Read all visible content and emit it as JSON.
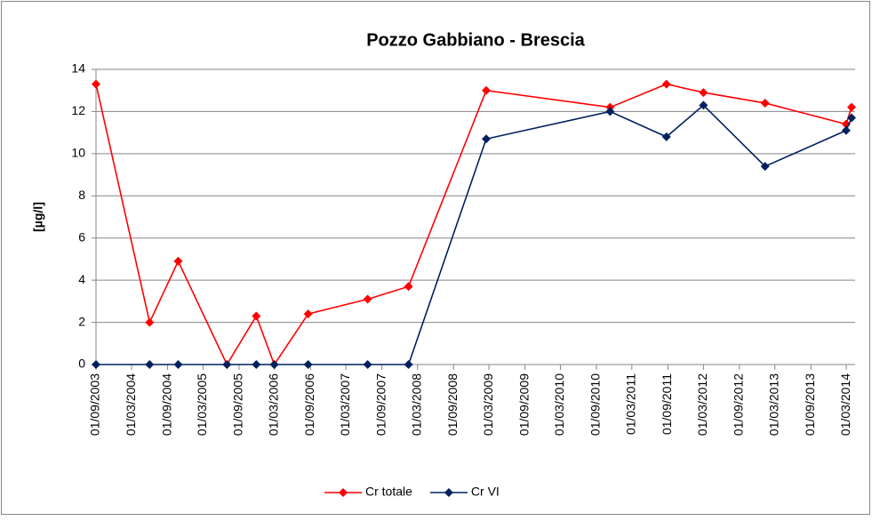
{
  "chart_data": {
    "type": "line",
    "title": "Pozzo Gabbiano - Brescia",
    "y_label": "[µg/l]",
    "x": [
      "01/09/2003",
      "01/06/2004",
      "25/10/2004",
      "01/07/2005",
      "28/11/2005",
      "28/02/2006",
      "20/08/2006",
      "20/06/2007",
      "15/01/2008",
      "15/02/2009",
      "10/11/2010",
      "25/08/2011",
      "01/03/2012",
      "10/01/2013",
      "28/02/2014",
      "28/03/2014"
    ],
    "series": [
      {
        "name": "Cr totale",
        "color": "#ff0000",
        "values": [
          13.3,
          2.0,
          4.9,
          0,
          2.3,
          0,
          2.4,
          3.1,
          3.7,
          13.0,
          12.2,
          13.3,
          12.9,
          12.4,
          11.4,
          12.2
        ]
      },
      {
        "name": "Cr VI",
        "color": "#002060",
        "values": [
          0,
          0,
          0,
          0,
          0,
          0,
          0,
          0,
          0,
          10.7,
          12.0,
          10.8,
          12.3,
          9.4,
          11.1,
          11.7
        ]
      }
    ],
    "xlim": [
      "01/09/2003",
      "15/04/2014"
    ],
    "xticks": [
      "01/09/2003",
      "01/03/2004",
      "01/09/2004",
      "01/03/2005",
      "01/09/2005",
      "01/03/2006",
      "01/09/2006",
      "01/03/2007",
      "01/09/2007",
      "01/03/2008",
      "01/09/2008",
      "01/03/2009",
      "01/09/2009",
      "01/03/2010",
      "01/09/2010",
      "01/03/2011",
      "01/09/2011",
      "01/03/2012",
      "01/09/2012",
      "01/03/2013",
      "01/09/2013",
      "01/03/2014"
    ],
    "ylim": [
      0,
      14
    ],
    "yticks": [
      0,
      2,
      4,
      6,
      8,
      10,
      12,
      14
    ],
    "grid": true,
    "legend": "bottom"
  }
}
